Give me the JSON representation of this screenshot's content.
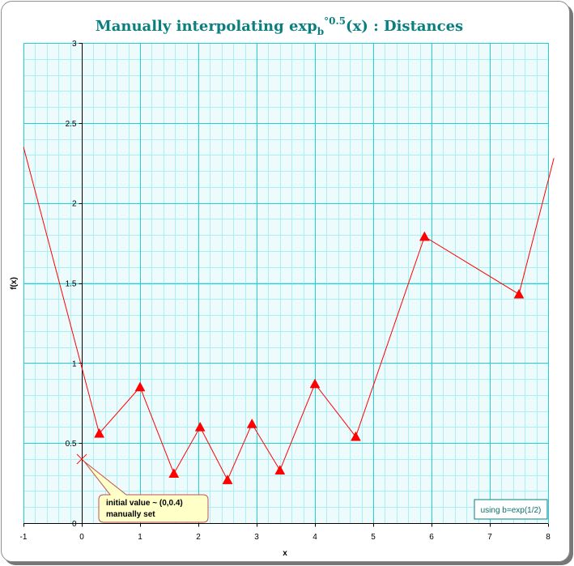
{
  "chart_data": {
    "type": "line",
    "title": {
      "main": "Manually interpolating exp",
      "subscript": "b",
      "superscript": "°0.5",
      "rest": "(x) : Distances"
    },
    "xlabel": "x",
    "ylabel": "f(x)",
    "xlim": [
      -1,
      8
    ],
    "ylim": [
      0,
      3
    ],
    "x_ticks": [
      "-1",
      "0",
      "1",
      "2",
      "3",
      "4",
      "5",
      "6",
      "7",
      "8"
    ],
    "y_ticks": [
      "0",
      "0.5",
      "1",
      "1.5",
      "2",
      "2.5",
      "3"
    ],
    "grid": "major and minor",
    "series": [
      {
        "color": "#ff0000",
        "marker": "triangle",
        "points": [
          [
            -1.0,
            2.35
          ],
          [
            0.3,
            0.56
          ],
          [
            1.0,
            0.85
          ],
          [
            1.58,
            0.31
          ],
          [
            2.03,
            0.6
          ],
          [
            2.5,
            0.27
          ],
          [
            2.92,
            0.62
          ],
          [
            3.4,
            0.33
          ],
          [
            4.0,
            0.87
          ],
          [
            4.7,
            0.54
          ],
          [
            5.88,
            1.79
          ],
          [
            7.5,
            1.43
          ],
          [
            8.1,
            2.28
          ]
        ],
        "marker_start": 1,
        "marker_end": 11
      }
    ],
    "initial_point": {
      "x": 0,
      "y": 0.4
    },
    "annotation": {
      "line1": "initial value ~ (0,0.4)",
      "line2": "manually set"
    },
    "note": "using b=exp(1/2)"
  },
  "colors": {
    "title": "#0a7f7f",
    "plot_background": "#eefbfd",
    "minor_grid": "#a9f0f5",
    "major_grid": "#22cfd6",
    "axis": "#000000",
    "series": "#ff0000",
    "callout_fill": "#ffffc8",
    "callout_border": "#c05050",
    "note_border": "#0a7f7f"
  }
}
